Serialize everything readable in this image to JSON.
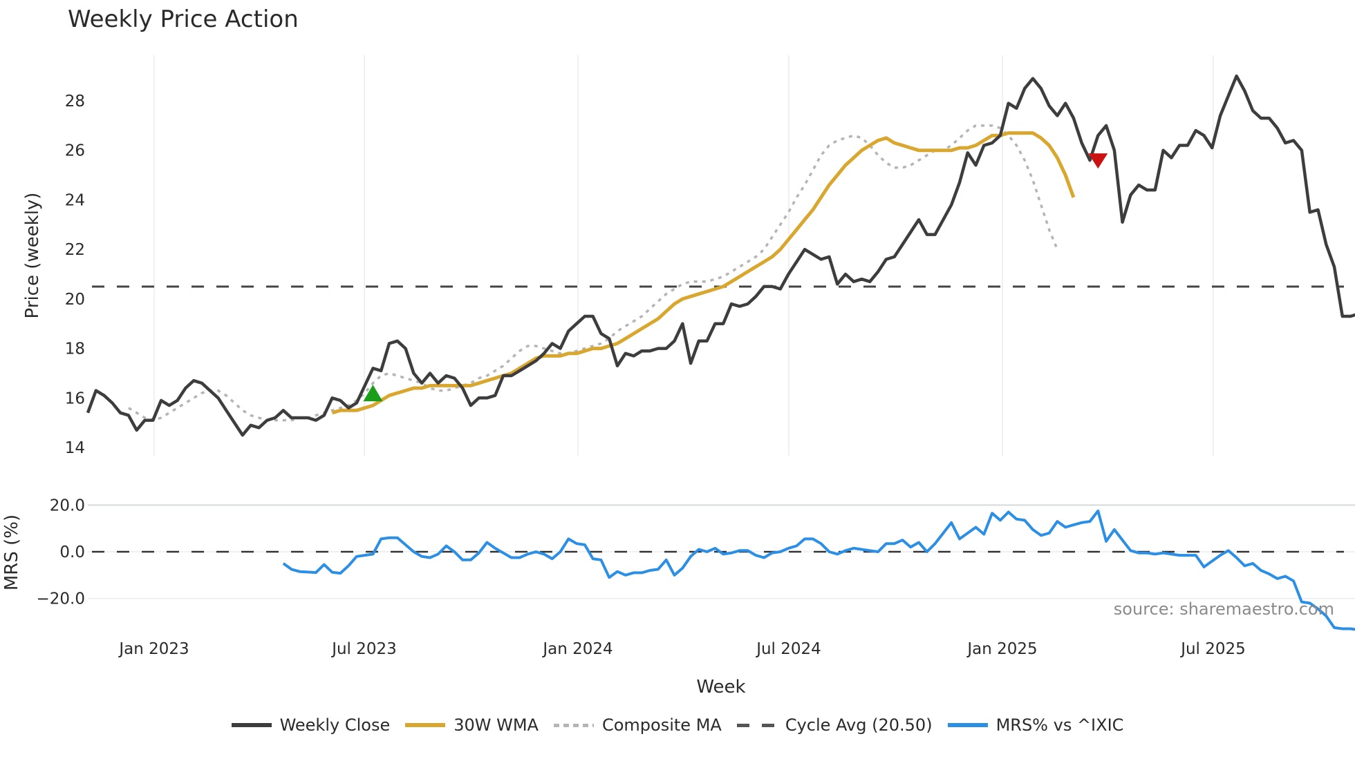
{
  "title": "Weekly Price Action",
  "watermark": "source: sharemaestro.com",
  "legend": [
    {
      "label": "Weekly Close",
      "style": "close"
    },
    {
      "label": "30W WMA",
      "style": "wma"
    },
    {
      "label": "Composite MA",
      "style": "comp"
    },
    {
      "label": "Cycle Avg (20.50)",
      "style": "cycle"
    },
    {
      "label": "MRS% vs ^IXIC",
      "style": "mrs"
    }
  ],
  "colors": {
    "close": "#3d3d3d",
    "wma": "#d9a62e",
    "composite": "#b5b5b5",
    "cycle": "#444444",
    "mrs": "#2b8fe5",
    "buy": "#1a9e1a",
    "sell": "#cc1111",
    "grid": "#e8ecef"
  },
  "chart_data": [
    {
      "type": "line",
      "title": "Weekly Price Action",
      "xlabel": "Week",
      "ylabel": "Price (weekly)",
      "ylim": [
        13.6,
        29.9
      ],
      "yticks": [
        14,
        16,
        18,
        20,
        22,
        24,
        26,
        28
      ],
      "xticks": [
        "Jan 2023",
        "Jul 2023",
        "Jan 2024",
        "Jul 2024",
        "Jan 2025",
        "Jul 2025"
      ],
      "grid": true,
      "legend_position": "bottom",
      "x_start_week": 0,
      "weeks_total": 156,
      "series": [
        {
          "name": "Weekly Close",
          "start": 0,
          "values": [
            15.4,
            16.3,
            16.1,
            15.8,
            15.4,
            15.3,
            14.7,
            15.1,
            15.1,
            15.9,
            15.7,
            15.9,
            16.4,
            16.7,
            16.6,
            16.3,
            16.0,
            15.5,
            15.0,
            14.5,
            14.9,
            14.8,
            15.1,
            15.2,
            15.5,
            15.2,
            15.2,
            15.2,
            15.1,
            15.3,
            16.0,
            15.9,
            15.6,
            15.8,
            16.5,
            17.2,
            17.1,
            18.2,
            18.3,
            18.0,
            17.0,
            16.6,
            17.0,
            16.6,
            16.9,
            16.8,
            16.4,
            15.7,
            16.0,
            16.0,
            16.1,
            16.9,
            16.9,
            17.1,
            17.3,
            17.5,
            17.8,
            18.2,
            18.0,
            18.7,
            19.0,
            19.3,
            19.3,
            18.6,
            18.4,
            17.3,
            17.8,
            17.7,
            17.9,
            17.9,
            18.0,
            18.0,
            18.3,
            19.0,
            17.4,
            18.3,
            18.3,
            19.0,
            19.0,
            19.8,
            19.7,
            19.8,
            20.1,
            20.5,
            20.5,
            20.4,
            21.0,
            21.5,
            22.0,
            21.8,
            21.6,
            21.7,
            20.6,
            21.0,
            20.7,
            20.8,
            20.7,
            21.1,
            21.6,
            21.7,
            22.2,
            22.7,
            23.2,
            22.6,
            22.6,
            23.2,
            23.8,
            24.7,
            25.9,
            25.4,
            26.2,
            26.3,
            26.6,
            27.9,
            27.7,
            28.5,
            28.9,
            28.5,
            27.8,
            27.4,
            27.9,
            27.3,
            26.3,
            25.6,
            26.6,
            27.0,
            26.0,
            23.1,
            24.2,
            24.6,
            24.4,
            24.4,
            26.0,
            25.7,
            26.2,
            26.2,
            26.8,
            26.6,
            26.1,
            27.4,
            28.2,
            29.0,
            28.4,
            27.6,
            27.3,
            27.3,
            26.9,
            26.3,
            26.4,
            26.0,
            23.5,
            23.6,
            22.2,
            21.3,
            19.3,
            19.3,
            19.4,
            19.3
          ]
        },
        {
          "name": "30W WMA",
          "start": 30,
          "values": [
            15.4,
            15.5,
            15.5,
            15.5,
            15.6,
            15.7,
            15.9,
            16.1,
            16.2,
            16.3,
            16.4,
            16.4,
            16.5,
            16.5,
            16.5,
            16.5,
            16.5,
            16.5,
            16.6,
            16.7,
            16.8,
            16.9,
            17.0,
            17.2,
            17.4,
            17.6,
            17.7,
            17.7,
            17.7,
            17.8,
            17.8,
            17.9,
            18.0,
            18.0,
            18.1,
            18.2,
            18.4,
            18.6,
            18.8,
            19.0,
            19.2,
            19.5,
            19.8,
            20.0,
            20.1,
            20.2,
            20.3,
            20.4,
            20.5,
            20.7,
            20.9,
            21.1,
            21.3,
            21.5,
            21.7,
            22.0,
            22.4,
            22.8,
            23.2,
            23.6,
            24.1,
            24.6,
            25.0,
            25.4,
            25.7,
            26.0,
            26.2,
            26.4,
            26.5,
            26.3,
            26.2,
            26.1,
            26.0,
            26.0,
            26.0,
            26.0,
            26.0,
            26.1,
            26.1,
            26.2,
            26.4,
            26.6,
            26.6,
            26.7,
            26.7,
            26.7,
            26.7,
            26.5,
            26.2,
            25.7,
            25.0,
            24.1
          ]
        },
        {
          "name": "Composite MA",
          "start": 5,
          "values": [
            15.6,
            15.4,
            15.2,
            15.1,
            15.2,
            15.4,
            15.6,
            15.8,
            16.0,
            16.2,
            16.3,
            16.3,
            16.1,
            15.8,
            15.5,
            15.3,
            15.2,
            15.1,
            15.1,
            15.1,
            15.1,
            15.2,
            15.2,
            15.3,
            15.4,
            15.5,
            15.6,
            15.7,
            15.9,
            16.2,
            16.6,
            16.9,
            17.0,
            16.9,
            16.8,
            16.7,
            16.6,
            16.4,
            16.3,
            16.3,
            16.4,
            16.5,
            16.6,
            16.8,
            16.9,
            17.1,
            17.3,
            17.6,
            17.9,
            18.1,
            18.1,
            18.0,
            17.9,
            17.8,
            17.8,
            17.9,
            18.0,
            18.1,
            18.2,
            18.4,
            18.7,
            18.9,
            19.1,
            19.3,
            19.6,
            19.9,
            20.2,
            20.4,
            20.6,
            20.7,
            20.7,
            20.7,
            20.8,
            20.9,
            21.1,
            21.3,
            21.5,
            21.7,
            22.0,
            22.5,
            23.0,
            23.5,
            24.1,
            24.6,
            25.2,
            25.8,
            26.2,
            26.4,
            26.5,
            26.6,
            26.5,
            26.2,
            25.8,
            25.5,
            25.3,
            25.3,
            25.4,
            25.6,
            25.8,
            26.0,
            26.0,
            26.2,
            26.5,
            26.8,
            27.0,
            27.0,
            27.0,
            26.9,
            26.6,
            26.2,
            25.6,
            24.8,
            23.8,
            22.8,
            22.0
          ]
        },
        {
          "name": "Cycle Avg (20.50)",
          "constant": 20.5
        }
      ],
      "markers": [
        {
          "type": "buy",
          "week": 35,
          "value": 16.2
        },
        {
          "type": "sell",
          "week": 124,
          "value": 25.6
        }
      ]
    },
    {
      "type": "line",
      "ylabel": "MRS (%)",
      "ylim": [
        -36,
        22
      ],
      "yticks": [
        20.0,
        0.0,
        -20.0
      ],
      "ytick_labels": [
        "20.0",
        "0.0",
        "−20.0"
      ],
      "series": [
        {
          "name": "MRS% vs ^IXIC",
          "start": 24,
          "values": [
            -5,
            -7.5,
            -8.5,
            -8.7,
            -8.9,
            -5.5,
            -8.8,
            -9.2,
            -6,
            -2,
            -1.5,
            -1,
            5.5,
            6,
            6,
            3,
            0,
            -2,
            -2.5,
            -1,
            2.5,
            0,
            -3.5,
            -3.5,
            -0.5,
            4,
            1.5,
            -0.5,
            -2.5,
            -2.5,
            -1,
            0,
            -1,
            -3,
            0,
            5.5,
            3.5,
            3,
            -3,
            -3.5,
            -11,
            -8.5,
            -10,
            -9,
            -9,
            -8,
            -7.5,
            -3.5,
            -10,
            -7,
            -2,
            1,
            0,
            1.5,
            -1,
            -0.5,
            0.5,
            0.5,
            -1.5,
            -2.5,
            -0.5,
            0,
            1.5,
            2.5,
            5.5,
            5.5,
            3.5,
            0,
            -1,
            0.5,
            1.5,
            1,
            0.5,
            0,
            3.5,
            3.5,
            5,
            2,
            4,
            0,
            3.5,
            8,
            12.5,
            5.5,
            8,
            10.5,
            7.5,
            16.5,
            13.5,
            17,
            14,
            13.5,
            9.5,
            7,
            8,
            13,
            10.5,
            11.5,
            12.5,
            13,
            17.5,
            4.5,
            9.5,
            5,
            0.5,
            -0.5,
            -0.5,
            -1,
            -0.5,
            -1,
            -1.5,
            -1.5,
            -1.5,
            -6.5,
            -4,
            -1.5,
            0.5,
            -2.5,
            -6,
            -5,
            -8,
            -9.5,
            -11.5,
            -10.5,
            -12.5,
            -21.5,
            -22,
            -24.5,
            -27.5,
            -32.5,
            -33,
            -33,
            -33.5
          ]
        },
        {
          "name": "Zero line",
          "constant": 0
        }
      ]
    }
  ]
}
